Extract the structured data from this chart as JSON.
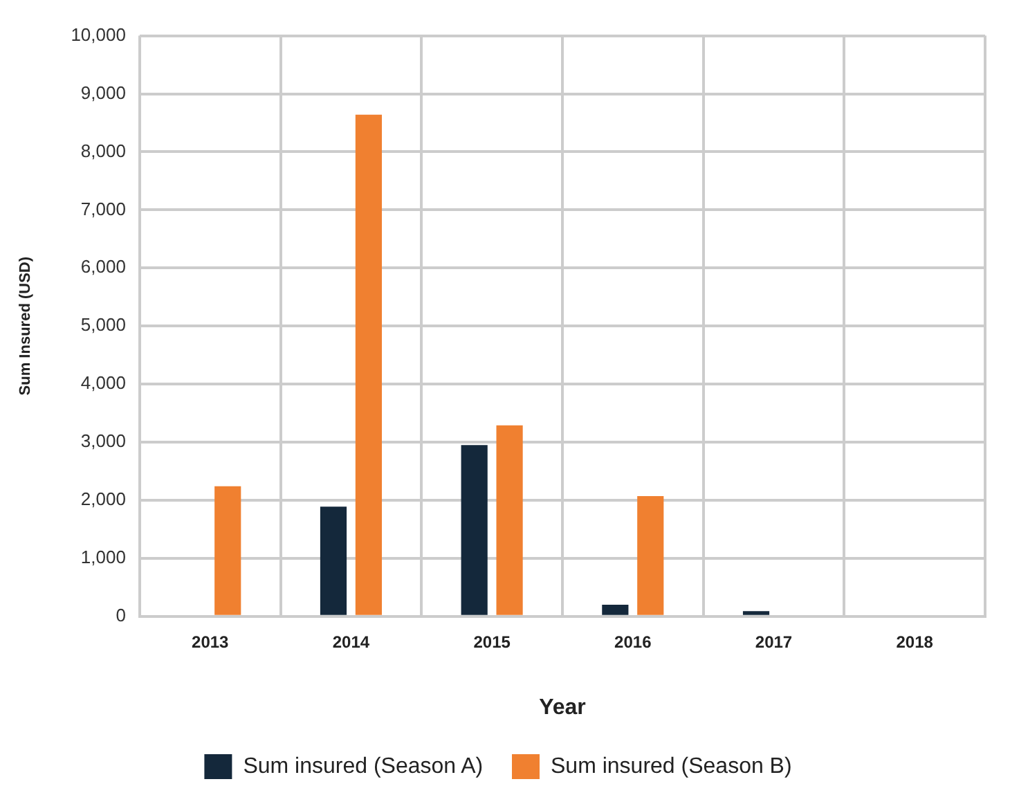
{
  "chart_data": {
    "type": "bar",
    "xlabel": "Year",
    "ylabel": "Sum Insured (USD)",
    "categories": [
      "2013",
      "2014",
      "2015",
      "2016",
      "2017",
      "2018"
    ],
    "series": [
      {
        "name": "Sum insured (Season A)",
        "color": "#14283b",
        "values": [
          0,
          1890,
          2950,
          200,
          90,
          0
        ]
      },
      {
        "name": "Sum insured (Season B)",
        "color": "#f08030",
        "values": [
          2240,
          8640,
          3290,
          2070,
          0,
          0
        ]
      }
    ],
    "ylim": [
      0,
      10000
    ],
    "yticks": [
      0,
      {
        "value": 1000,
        "label": "1,000"
      },
      {
        "value": 2000,
        "label": "2,000"
      },
      {
        "value": 3000,
        "label": "3,000"
      },
      {
        "value": 4000,
        "label": "4,000"
      },
      {
        "value": 5000,
        "label": "5,000"
      },
      {
        "value": 6000,
        "label": "6,000"
      },
      {
        "value": 7000,
        "label": "7,000"
      },
      {
        "value": 8000,
        "label": "8,000"
      },
      {
        "value": 9000,
        "label": "9,000"
      },
      {
        "value": 10000,
        "label": "10,000"
      }
    ],
    "grid": true,
    "legend": "bottom"
  }
}
